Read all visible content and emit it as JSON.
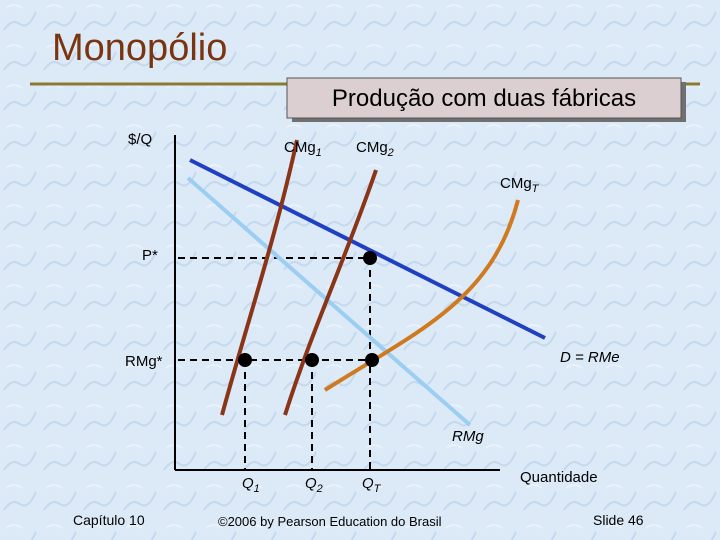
{
  "title": "Monopólio",
  "subtitle": "Produção com duas fábricas",
  "diagram": {
    "y_axis_label": "$/Q",
    "x_axis_label": "Quantidade",
    "curves": [
      {
        "label": "CMg",
        "subscript": "1"
      },
      {
        "label": "CMg",
        "subscript": "2"
      },
      {
        "label": "CMg",
        "subscript": "T"
      },
      {
        "label": "D = RMe"
      },
      {
        "label": "RMg"
      }
    ],
    "price_label": "P*",
    "marginal_revenue_label": "RMg*",
    "quantities": [
      {
        "label": "Q",
        "subscript": "1"
      },
      {
        "label": "Q",
        "subscript": "2"
      },
      {
        "label": "Q",
        "subscript": "T"
      }
    ]
  },
  "footer": {
    "chapter": "Capítulo 10",
    "copyright": "©2006 by Pearson Education do Brasil",
    "slide": "Slide 46"
  }
}
